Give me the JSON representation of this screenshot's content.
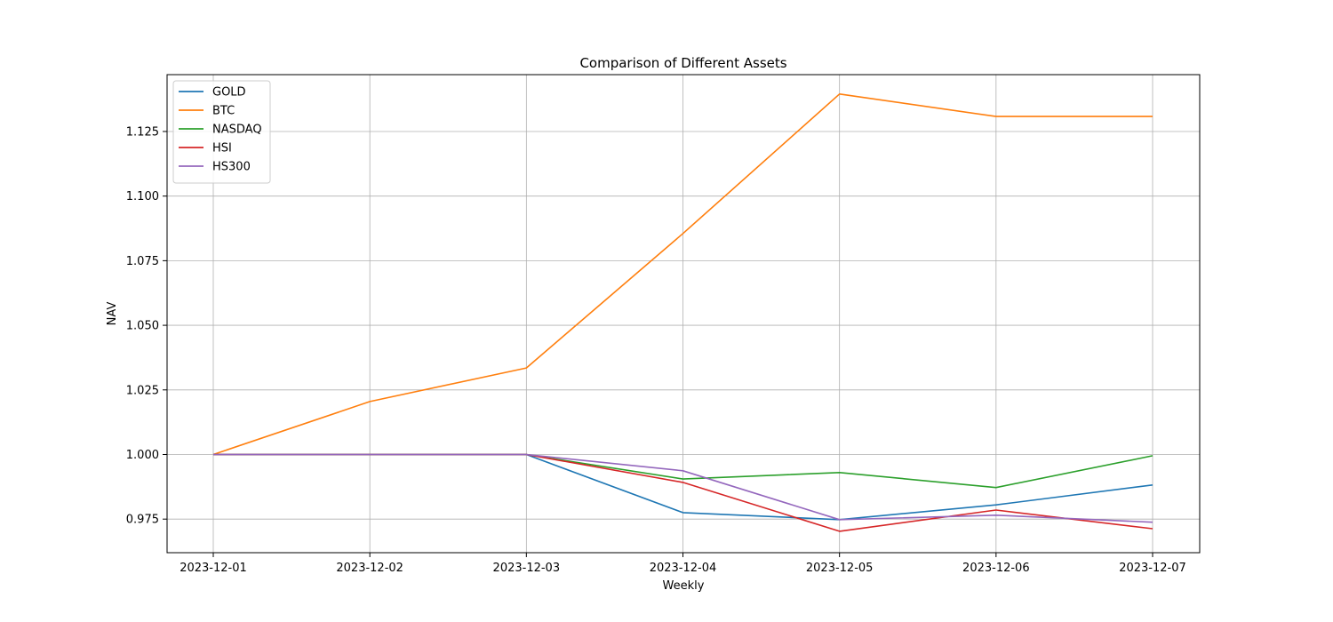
{
  "chart_data": {
    "type": "line",
    "title": "Comparison of Different Assets",
    "xlabel": "Weekly",
    "ylabel": "NAV",
    "x": [
      "2023-12-01",
      "2023-12-02",
      "2023-12-03",
      "2023-12-04",
      "2023-12-05",
      "2023-12-06",
      "2023-12-07"
    ],
    "ylim": [
      0.962,
      1.147
    ],
    "yticks": [
      "0.975",
      "1.000",
      "1.025",
      "1.050",
      "1.075",
      "1.100",
      "1.125"
    ],
    "grid": true,
    "legend_position": "top-left",
    "series": [
      {
        "name": "GOLD",
        "color": "#1f77b4",
        "values": [
          1.0,
          1.0,
          1.0,
          0.9775,
          0.9748,
          0.9805,
          0.9882
        ]
      },
      {
        "name": "BTC",
        "color": "#ff7f0e",
        "values": [
          1.0,
          1.0205,
          1.0335,
          1.0855,
          1.1395,
          1.1308,
          1.1308
        ]
      },
      {
        "name": "NASDAQ",
        "color": "#2ca02c",
        "values": [
          1.0,
          1.0,
          1.0,
          0.9905,
          0.993,
          0.9872,
          0.9995
        ]
      },
      {
        "name": "HSI",
        "color": "#d62728",
        "values": [
          1.0,
          1.0,
          1.0,
          0.9892,
          0.9703,
          0.9785,
          0.9713
        ]
      },
      {
        "name": "HS300",
        "color": "#9467bd",
        "values": [
          1.0,
          1.0,
          1.0,
          0.9937,
          0.9748,
          0.9765,
          0.9738
        ]
      }
    ]
  }
}
